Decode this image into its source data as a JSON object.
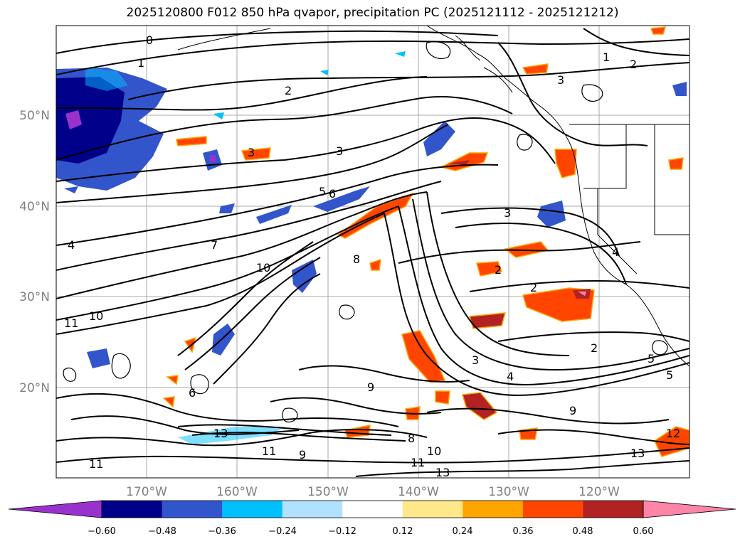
{
  "title": "2025120800 F012 850 hPa qvapor, precipitation PC (2025121112 - 2025121212)",
  "map": {
    "lat_labels": [
      "50°N",
      "40°N",
      "30°N",
      "20°N"
    ],
    "lon_labels": [
      "170°W",
      "160°W",
      "150°W",
      "140°W",
      "130°W",
      "120°W"
    ],
    "contour_labels": [
      "0",
      "1",
      "2",
      "3",
      "4",
      "5",
      "6",
      "7",
      "8",
      "9",
      "10",
      "11",
      "12",
      "13"
    ]
  },
  "colorbar": {
    "ticks": [
      "−0.60",
      "−0.48",
      "−0.36",
      "−0.24",
      "−0.12",
      "0.12",
      "0.24",
      "0.36",
      "0.48",
      "0.60"
    ],
    "colors": [
      "#9932cc",
      "#00008b",
      "#3355cc",
      "#00bfff",
      "#b0e2ff",
      "#ffffff",
      "#ffe88a",
      "#ffa500",
      "#ff4500",
      "#b22222",
      "#ff85a8"
    ]
  }
}
